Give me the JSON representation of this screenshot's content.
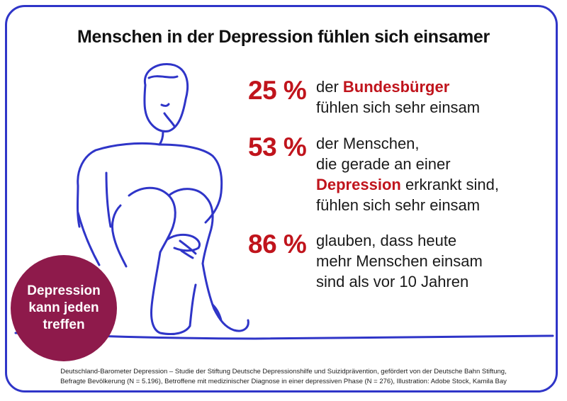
{
  "title": "Menschen in der Depression fühlen sich einsamer",
  "colors": {
    "frame": "#2f35c8",
    "accent": "#c0141c",
    "badge": "#8e1a4b",
    "line": "#2f35c8"
  },
  "illustration": {
    "icon": "sitting-person-line-art"
  },
  "stats": [
    {
      "percent": "25 %",
      "line1_pre": "der ",
      "line1_highlight": "Bundesbürger",
      "line2": "fühlen sich sehr einsam"
    },
    {
      "percent": "53 %",
      "line1": "der Menschen,",
      "line2": "die gerade an einer",
      "line3_highlight": "Depression",
      "line3_post": " erkrankt sind,",
      "line4": "fühlen sich sehr einsam"
    },
    {
      "percent": "86 %",
      "line1": "glauben, dass heute",
      "line2": "mehr Menschen einsam",
      "line3": "sind als vor 10 Jahren"
    }
  ],
  "badge": {
    "line1": "Depression",
    "line2": "kann jeden",
    "line3": "treffen"
  },
  "source": {
    "line1": "Deutschland-Barometer Depression – Studie der Stiftung Deutsche Depressionshilfe und Suizidprävention, gefördert von der Deutsche Bahn Stiftung,",
    "line2": "Befragte Bevölkerung (N = 5.196), Betroffene mit medizinischer Diagnose in einer depressiven Phase (N = 276), Illustration: Adobe Stock, Kamila Bay"
  }
}
